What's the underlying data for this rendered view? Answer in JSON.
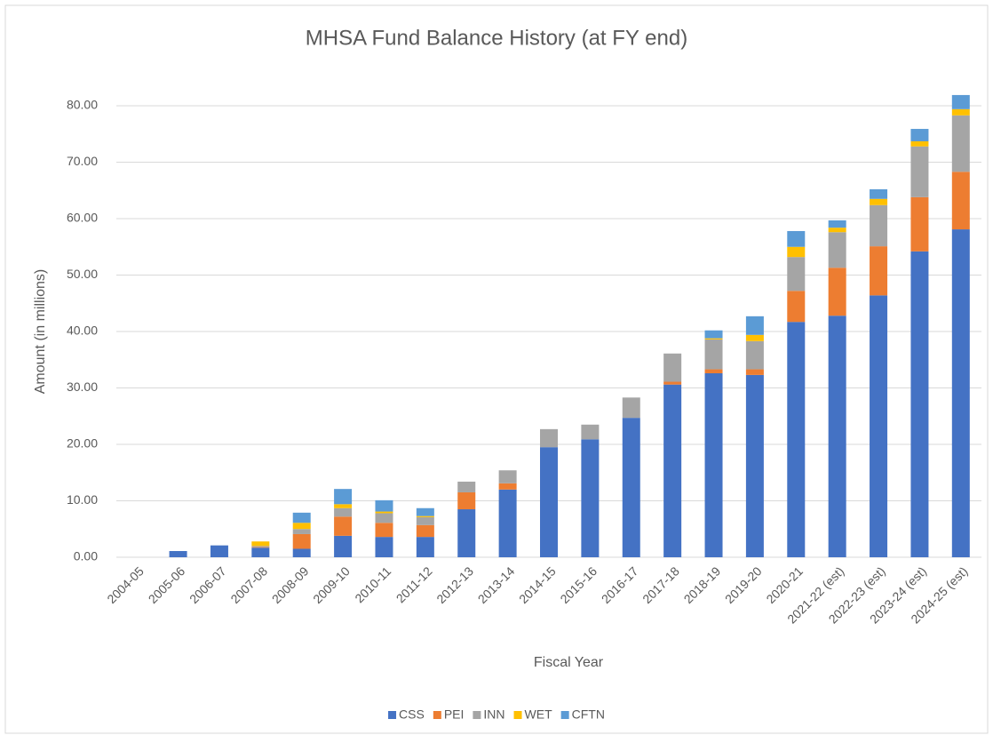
{
  "chart_data": {
    "type": "stacked_bar",
    "title": "MHSA Fund Balance History (at FY end)",
    "x_label": "Fiscal Year",
    "y_label": "Amount (in millions)",
    "categories": [
      "2004-05",
      "2005-06",
      "2006-07",
      "2007-08",
      "2008-09",
      "2009-10",
      "2010-11",
      "2011-12",
      "2012-13",
      "2013-14",
      "2014-15",
      "2015-16",
      "2016-17",
      "2017-18",
      "2018-19",
      "2019-20",
      "2020-21",
      "2021-22 (est)",
      "2022-23 (est)",
      "2023-24 (est)",
      "2024-25 (est)"
    ],
    "series": [
      {
        "name": "CSS",
        "color": "#4472c4",
        "values": [
          0,
          1.1,
          2.1,
          1.7,
          1.5,
          3.8,
          3.6,
          3.6,
          8.5,
          12.0,
          19.5,
          20.9,
          24.7,
          30.6,
          32.6,
          32.3,
          41.7,
          42.8,
          46.4,
          54.2,
          58.1
        ]
      },
      {
        "name": "PEI",
        "color": "#ed7d31",
        "values": [
          0,
          0,
          0,
          0.1,
          2.6,
          3.4,
          2.5,
          2.1,
          3.0,
          1.1,
          0,
          0,
          0,
          0.5,
          0.7,
          1.0,
          5.5,
          8.5,
          8.7,
          9.6,
          10.2
        ]
      },
      {
        "name": "INN",
        "color": "#a5a5a5",
        "values": [
          0,
          0,
          0,
          0.2,
          0.9,
          1.5,
          1.7,
          1.4,
          1.9,
          2.3,
          3.2,
          2.6,
          3.6,
          5.0,
          5.3,
          5.0,
          6.0,
          6.3,
          7.3,
          9.0,
          10.0
        ]
      },
      {
        "name": "WET",
        "color": "#ffc000",
        "values": [
          0,
          0,
          0,
          0.8,
          1.1,
          0.7,
          0.3,
          0.2,
          0,
          0,
          0,
          0,
          0,
          0,
          0.2,
          1.1,
          1.8,
          0.8,
          1.1,
          0.9,
          1.1
        ]
      },
      {
        "name": "CFTN",
        "color": "#5b9bd5",
        "values": [
          0,
          0,
          0,
          0,
          1.8,
          2.7,
          2.0,
          1.4,
          0,
          0,
          0,
          0,
          0,
          0,
          1.4,
          3.3,
          2.8,
          1.3,
          1.7,
          2.2,
          2.5
        ]
      }
    ],
    "ylim": [
      0,
      85
    ],
    "yticks": [
      {
        "value": 0,
        "label": "0.00"
      },
      {
        "value": 10,
        "label": "10.00"
      },
      {
        "value": 20,
        "label": "20.00"
      },
      {
        "value": 30,
        "label": "30.00"
      },
      {
        "value": 40,
        "label": "40.00"
      },
      {
        "value": 50,
        "label": "50.00"
      },
      {
        "value": 60,
        "label": "60.00"
      },
      {
        "value": 70,
        "label": "70.00"
      },
      {
        "value": 80,
        "label": "80.00"
      }
    ],
    "grid": true,
    "legend": "bottom"
  }
}
